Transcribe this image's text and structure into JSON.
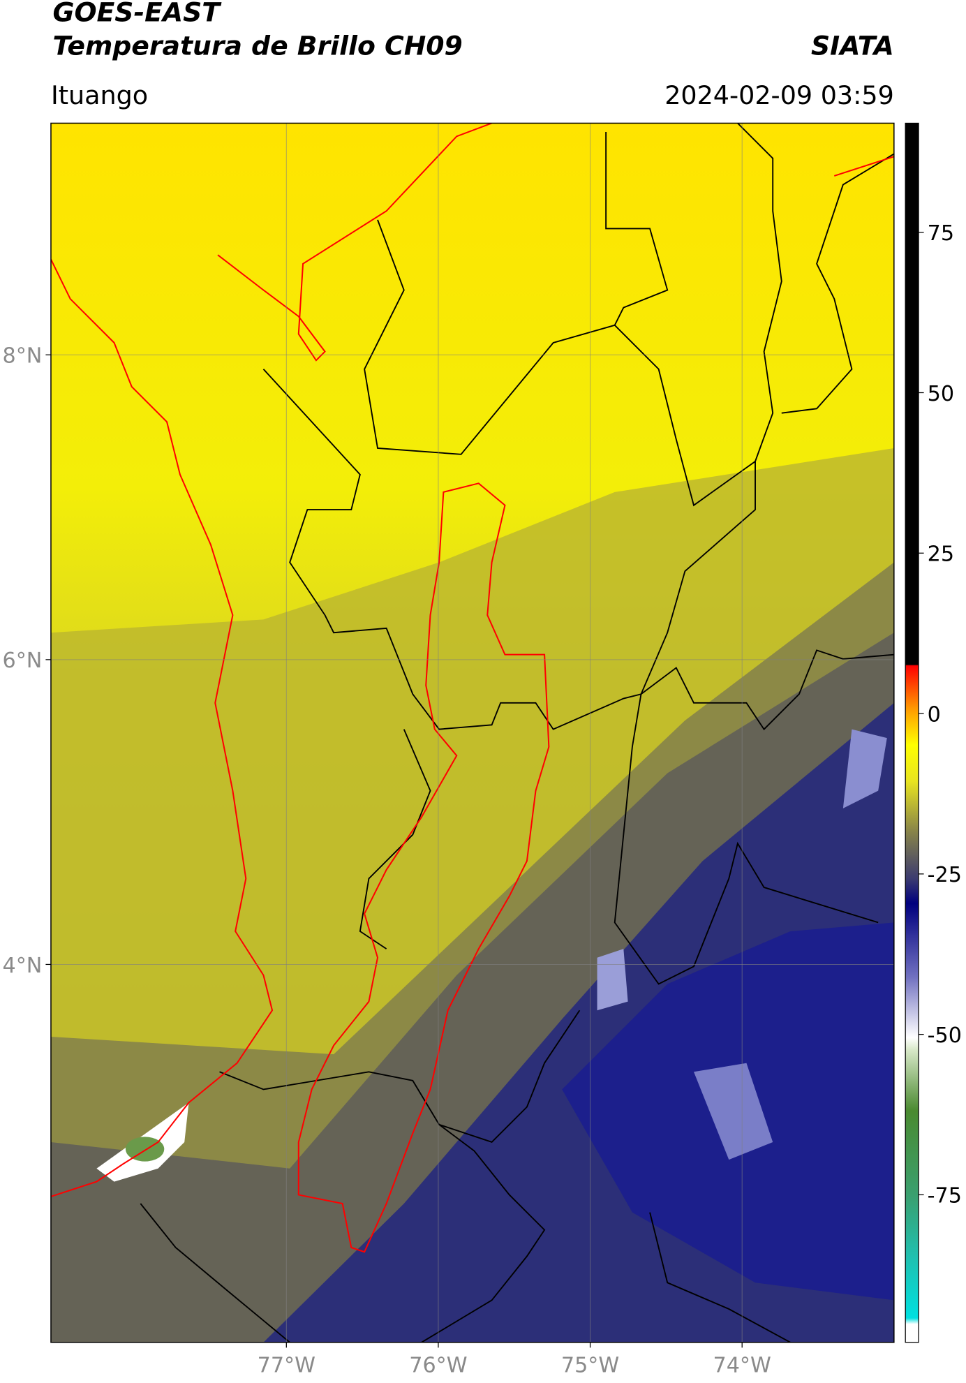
{
  "header": {
    "satellite": "GOES-EAST",
    "product": "Temperatura de Brillo CH09",
    "source": "SIATA",
    "region": "Ituango",
    "datetime": "2024-02-09 03:59"
  },
  "map": {
    "xlim": [
      -78.55,
      -73.0
    ],
    "ylim": [
      1.52,
      9.52
    ],
    "xticks": [
      {
        "value": -77,
        "label": "77°W"
      },
      {
        "value": -76,
        "label": "76°W"
      },
      {
        "value": -75,
        "label": "75°W"
      },
      {
        "value": -74,
        "label": "74°W"
      }
    ],
    "yticks": [
      {
        "value": 8,
        "label": "8°N"
      },
      {
        "value": 6,
        "label": "6°N"
      },
      {
        "value": 4,
        "label": "4°N"
      }
    ],
    "grid": true
  },
  "colorbar": {
    "clim": [
      -98,
      92
    ],
    "ticks": [
      75,
      50,
      25,
      0,
      -25,
      -50,
      -75
    ]
  }
}
